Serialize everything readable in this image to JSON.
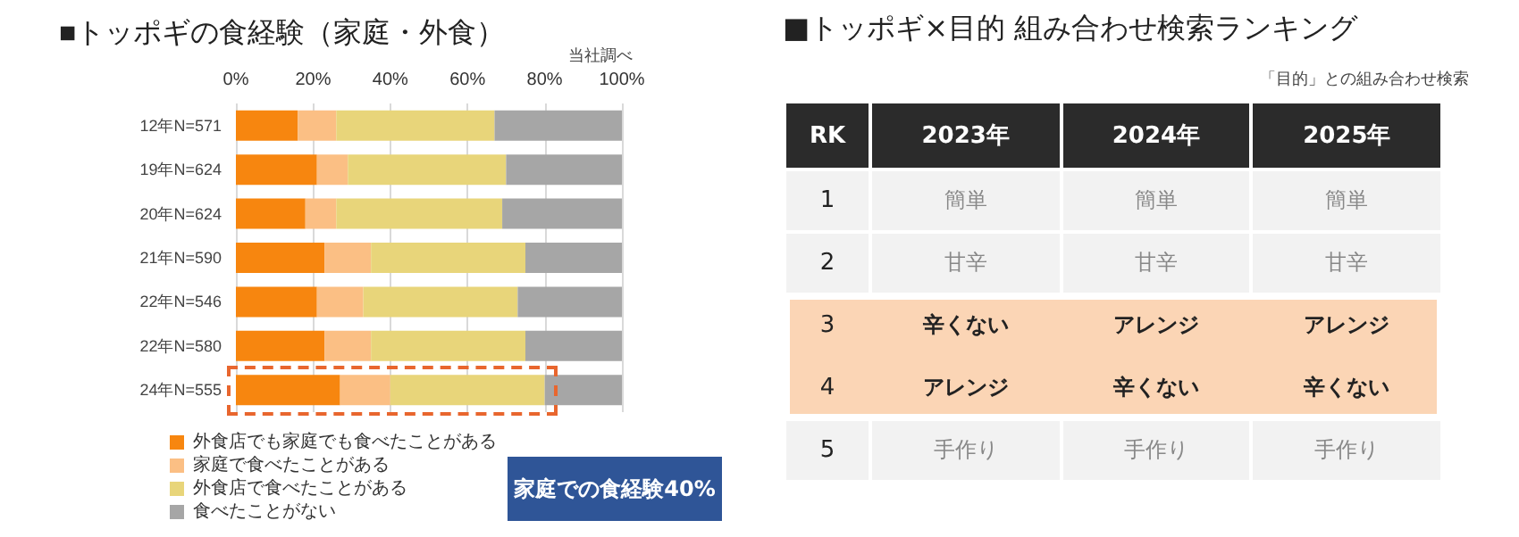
{
  "chart_data": [
    {
      "type": "bar",
      "title": "■トッポギの食経験（家庭・外食）",
      "orientation": "horizontal",
      "stacked": true,
      "categories": [
        "12年N=571",
        "19年N=624",
        "20年N=624",
        "21年N=590",
        "22年N=546",
        "22年N=580",
        "24年N=555"
      ],
      "series": [
        {
          "name": "外食店でも家庭でも食べたことがある",
          "color": "#f7860f",
          "values": [
            16,
            21,
            18,
            23,
            21,
            23,
            27
          ]
        },
        {
          "name": "家庭で食べたことがある",
          "color": "#fbbf84",
          "values": [
            10,
            8,
            8,
            12,
            12,
            12,
            13
          ]
        },
        {
          "name": "外食店で食べたことがある",
          "color": "#e8d57a",
          "values": [
            41,
            41,
            43,
            40,
            40,
            40,
            40
          ]
        },
        {
          "name": "食べたことがない",
          "color": "#a6a6a6",
          "values": [
            33,
            30,
            31,
            25,
            27,
            25,
            20
          ]
        }
      ],
      "xlim": [
        0,
        100
      ],
      "xticks": [
        {
          "value": 0,
          "label": "0%"
        },
        {
          "value": 20,
          "label": "20%"
        },
        {
          "value": 40,
          "label": "40%"
        },
        {
          "value": 60,
          "label": "60%"
        },
        {
          "value": 80,
          "label": "80%"
        },
        {
          "value": 100,
          "label": "100%"
        }
      ],
      "grid": "x",
      "legend": "bottom left",
      "annotations": [
        "当社調べ",
        "家庭での食経験40%"
      ]
    },
    {
      "type": "heatmap",
      "title": "■トッポギ×目的 組み合わせ検索ランキング",
      "ylabel": "RK",
      "y_categories": [
        "1",
        "2",
        "3",
        "4",
        "5"
      ],
      "cells": [
        [
          null,
          null,
          null
        ],
        [
          null,
          null,
          null
        ],
        [
          null,
          null,
          null
        ],
        [
          null,
          null,
          null
        ],
        [
          null,
          null,
          null
        ]
      ],
      "annotations": [
        "「目的」との組み合わせ検索"
      ],
      "categories": [
        "2023年",
        "2024年",
        "2025年"
      ],
      "cell_labels": [
        [
          "簡単",
          "簡単",
          "簡単"
        ],
        [
          "甘辛",
          "甘辛",
          "甘辛"
        ],
        [
          "辛くない",
          "アレンジ",
          "アレンジ"
        ],
        [
          "アレンジ",
          "辛くない",
          "辛くない"
        ],
        [
          "手作り",
          "手作り",
          "手作り"
        ]
      ],
      "bands": [
        {
          "axis": "y",
          "from": "3",
          "to": "4",
          "color": "#fbd5b5"
        }
      ]
    }
  ]
}
